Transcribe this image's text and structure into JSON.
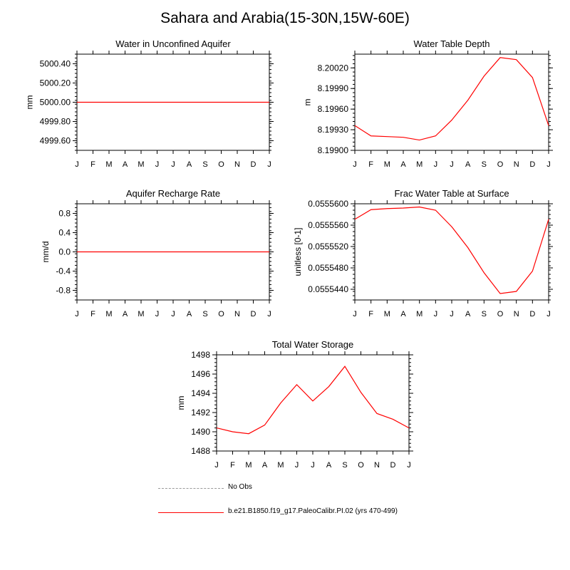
{
  "figure_title": "Sahara and Arabia(15-30N,15W-60E)",
  "month_labels": [
    "J",
    "F",
    "M",
    "A",
    "M",
    "J",
    "J",
    "A",
    "S",
    "O",
    "N",
    "D",
    "J"
  ],
  "colors": {
    "model_line": "#ff0000",
    "obs_line": "#9a9a9a",
    "axes": "#000000"
  },
  "legend": {
    "obs_label": "No Obs",
    "model_label": "b.e21.B1850.f19_g17.PaleoCalibr.PI.02 (yrs 470-499)"
  },
  "chart_data": [
    {
      "type": "line",
      "title": "Water in Unconfined Aquifer",
      "ylabel": "mm",
      "categories": [
        "J",
        "F",
        "M",
        "A",
        "M",
        "J",
        "J",
        "A",
        "S",
        "O",
        "N",
        "D",
        "J"
      ],
      "ylim": [
        4999.5,
        5000.5
      ],
      "yticks": [
        4999.6,
        4999.8,
        5000.0,
        5000.2,
        5000.4
      ],
      "ytick_labels": [
        "4999.60",
        "4999.80",
        "5000.00",
        "5000.20",
        "5000.40"
      ],
      "series": [
        {
          "name": "b.e21.B1850.f19_g17.PaleoCalibr.PI.02 (yrs 470-499)",
          "values": [
            5000,
            5000,
            5000,
            5000,
            5000,
            5000,
            5000,
            5000,
            5000,
            5000,
            5000,
            5000,
            5000
          ]
        }
      ]
    },
    {
      "type": "line",
      "title": "Water Table Depth",
      "ylabel": "m",
      "categories": [
        "J",
        "F",
        "M",
        "A",
        "M",
        "J",
        "J",
        "A",
        "S",
        "O",
        "N",
        "D",
        "J"
      ],
      "ylim": [
        8.199,
        8.2004
      ],
      "yticks": [
        8.199,
        8.1993,
        8.1996,
        8.1999,
        8.2002
      ],
      "ytick_labels": [
        "8.19900",
        "8.19930",
        "8.19960",
        "8.19990",
        "8.20020"
      ],
      "series": [
        {
          "name": "b.e21.B1850.f19_g17.PaleoCalibr.PI.02 (yrs 470-499)",
          "values": [
            8.19936,
            8.19921,
            8.1992,
            8.19919,
            8.19915,
            8.19921,
            8.19944,
            8.19973,
            8.20008,
            8.20035,
            8.20032,
            8.20006,
            8.19936
          ]
        }
      ]
    },
    {
      "type": "line",
      "title": "Aquifer Recharge Rate",
      "ylabel": "mm/d",
      "categories": [
        "J",
        "F",
        "M",
        "A",
        "M",
        "J",
        "J",
        "A",
        "S",
        "O",
        "N",
        "D",
        "J"
      ],
      "ylim": [
        -1,
        1
      ],
      "yticks": [
        -0.8,
        -0.4,
        0.0,
        0.4,
        0.8
      ],
      "ytick_labels": [
        "-0.8",
        "-0.4",
        "0.0",
        "0.4",
        "0.8"
      ],
      "series": [
        {
          "name": "b.e21.B1850.f19_g17.PaleoCalibr.PI.02 (yrs 470-499)",
          "values": [
            0,
            0,
            0,
            0,
            0,
            0,
            0,
            0,
            0,
            0,
            0,
            0,
            0
          ]
        }
      ]
    },
    {
      "type": "line",
      "title": "Frac Water Table at Surface",
      "ylabel": "unitless [0-1]",
      "categories": [
        "J",
        "F",
        "M",
        "A",
        "M",
        "J",
        "J",
        "A",
        "S",
        "O",
        "N",
        "D",
        "J"
      ],
      "ylim": [
        0.055542,
        0.05556
      ],
      "yticks": [
        0.055544,
        0.055548,
        0.055552,
        0.055556,
        0.05556
      ],
      "ytick_labels": [
        "0.0555440",
        "0.0555480",
        "0.0555520",
        "0.0555560",
        "0.0555600"
      ],
      "series": [
        {
          "name": "b.e21.B1850.f19_g17.PaleoCalibr.PI.02 (yrs 470-499)",
          "values": [
            0.0555571,
            0.0555589,
            0.0555591,
            0.0555592,
            0.0555594,
            0.0555588,
            0.0555557,
            0.0555518,
            0.0555471,
            0.0555432,
            0.0555436,
            0.0555474,
            0.0555571
          ]
        }
      ]
    },
    {
      "type": "line",
      "title": "Total Water Storage",
      "ylabel": "mm",
      "categories": [
        "J",
        "F",
        "M",
        "A",
        "M",
        "J",
        "J",
        "A",
        "S",
        "O",
        "N",
        "D",
        "J"
      ],
      "ylim": [
        1488,
        1498
      ],
      "yticks": [
        1488,
        1490,
        1492,
        1494,
        1496,
        1498
      ],
      "ytick_labels": [
        "1488",
        "1490",
        "1492",
        "1494",
        "1496",
        "1498"
      ],
      "series": [
        {
          "name": "b.e21.B1850.f19_g17.PaleoCalibr.PI.02 (yrs 470-499)",
          "values": [
            1490.4,
            1490.0,
            1489.8,
            1490.7,
            1493.0,
            1494.9,
            1493.2,
            1494.7,
            1496.8,
            1494.1,
            1491.9,
            1491.3,
            1490.4
          ]
        }
      ]
    }
  ]
}
